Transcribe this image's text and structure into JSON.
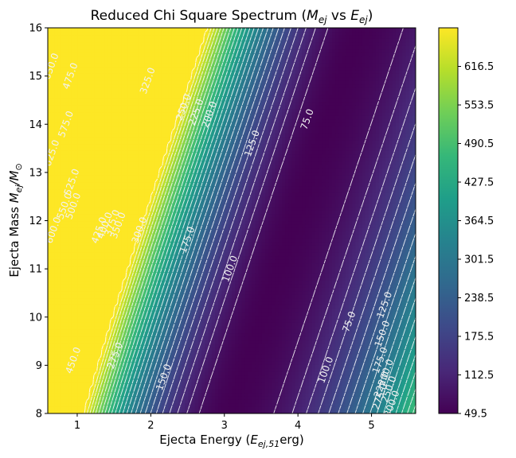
{
  "chart_data": {
    "type": "heatmap",
    "title": "Reduced Chi Square Spectrum (M_ej vs E_ej)",
    "title_parts": {
      "lead": "Reduced Chi Square Spectrum (",
      "m": "M",
      "m_sub": "ej",
      "vs": " vs ",
      "e": "E",
      "e_sub": "ej",
      "tail": ")"
    },
    "xlabel": "Ejecta Energy (E_ej,51 erg)",
    "xlabel_parts": {
      "lead": "Ejecta Energy (",
      "e": "E",
      "e_sub": "ej,51",
      "tail": "erg)"
    },
    "ylabel": "Ejecta Mass M_ej/M_⊙",
    "ylabel_parts": {
      "lead": "Ejecta Mass ",
      "m": "M",
      "m_sub": "ej",
      "slash": "/",
      "msun": "M",
      "msun_sub": "⊙"
    },
    "xlim": [
      0.6,
      5.6
    ],
    "ylim": [
      8,
      16
    ],
    "x_ticks": [
      1,
      2,
      3,
      4,
      5
    ],
    "y_ticks": [
      8,
      9,
      10,
      11,
      12,
      13,
      14,
      15,
      16
    ],
    "colorbar": {
      "colormap": "viridis",
      "range": [
        49.5,
        679.5
      ],
      "ticks": [
        "616.5",
        "553.5",
        "490.5",
        "427.5",
        "364.5",
        "301.5",
        "238.5",
        "175.5",
        "112.5",
        "49.5"
      ]
    },
    "contour_lines": "white dashed",
    "contour_labels": [
      {
        "text": "650.0",
        "x": 0.65,
        "y": 15.2
      },
      {
        "text": "475.0",
        "x": 0.91,
        "y": 15.0
      },
      {
        "text": "625.0",
        "x": 0.66,
        "y": 13.4
      },
      {
        "text": "575.0",
        "x": 0.85,
        "y": 14.0
      },
      {
        "text": "550.0",
        "x": 0.83,
        "y": 12.3
      },
      {
        "text": "525.0",
        "x": 0.93,
        "y": 12.8
      },
      {
        "text": "500.0",
        "x": 0.95,
        "y": 12.3
      },
      {
        "text": "600.0",
        "x": 0.68,
        "y": 11.8
      },
      {
        "text": "450.0",
        "x": 0.95,
        "y": 9.1
      },
      {
        "text": "425.0",
        "x": 1.3,
        "y": 11.8
      },
      {
        "text": "400.0",
        "x": 1.38,
        "y": 11.9
      },
      {
        "text": "375.0",
        "x": 1.48,
        "y": 11.95
      },
      {
        "text": "350.0",
        "x": 1.56,
        "y": 11.9
      },
      {
        "text": "325.0",
        "x": 1.96,
        "y": 14.9
      },
      {
        "text": "300.0",
        "x": 1.85,
        "y": 11.8
      },
      {
        "text": "275.0",
        "x": 1.52,
        "y": 9.2
      },
      {
        "text": "250.0",
        "x": 2.45,
        "y": 14.35
      },
      {
        "text": "225.0",
        "x": 2.62,
        "y": 14.25
      },
      {
        "text": "200.0",
        "x": 2.8,
        "y": 14.2
      },
      {
        "text": "175.0",
        "x": 2.5,
        "y": 11.6
      },
      {
        "text": "150.0",
        "x": 2.18,
        "y": 8.75
      },
      {
        "text": "125.0",
        "x": 3.38,
        "y": 13.6
      },
      {
        "text": "100.0",
        "x": 3.08,
        "y": 11.0
      },
      {
        "text": "75.0",
        "x": 4.13,
        "y": 14.1
      },
      {
        "text": "75.0",
        "x": 4.7,
        "y": 9.9
      },
      {
        "text": "125.0",
        "x": 5.18,
        "y": 10.25
      },
      {
        "text": "150.0",
        "x": 5.15,
        "y": 9.65
      },
      {
        "text": "100.0",
        "x": 4.38,
        "y": 8.9
      },
      {
        "text": "175.0",
        "x": 5.12,
        "y": 9.1
      },
      {
        "text": "200.0",
        "x": 5.2,
        "y": 8.85
      },
      {
        "text": "225.0",
        "x": 5.14,
        "y": 8.6
      },
      {
        "text": "250.0",
        "x": 5.24,
        "y": 8.5
      },
      {
        "text": "275.0",
        "x": 5.12,
        "y": 8.35
      },
      {
        "text": "300.0",
        "x": 5.28,
        "y": 8.2
      }
    ],
    "grid": false
  }
}
